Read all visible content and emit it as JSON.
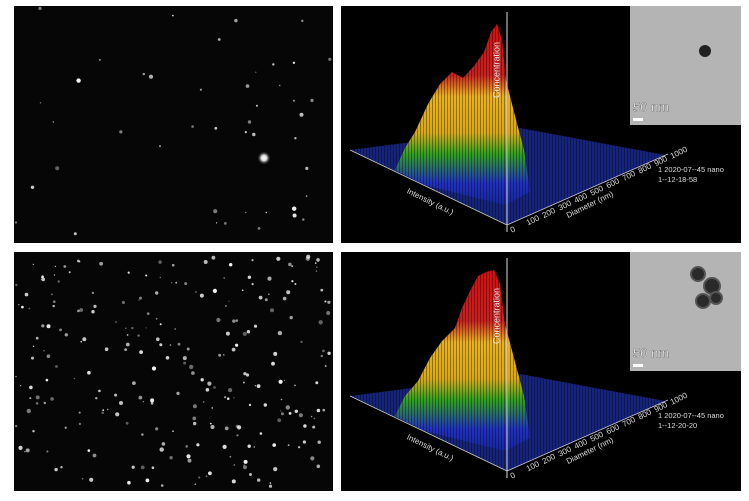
{
  "panels": [
    {
      "scale_bar": "50 nm",
      "z_axis": "Concentration",
      "x_axis": "Intensity (a.u.)",
      "y_axis": "Diameter (nm)",
      "y_ticks": [
        0,
        100,
        200,
        300,
        400,
        500,
        600,
        700,
        800,
        900,
        1000
      ],
      "note": [
        "1 2020-07--45 nano",
        "1--12-18-58"
      ]
    },
    {
      "scale_bar": "50 nm",
      "z_axis": "Concentration",
      "x_axis": "Intensity (a.u.)",
      "y_axis": "Diameter (nm)",
      "y_ticks": [
        0,
        100,
        200,
        300,
        400,
        500,
        600,
        700,
        800,
        900,
        1000
      ],
      "note": [
        "1 2020-07--45 nano",
        "1--12-20-20"
      ]
    }
  ]
}
